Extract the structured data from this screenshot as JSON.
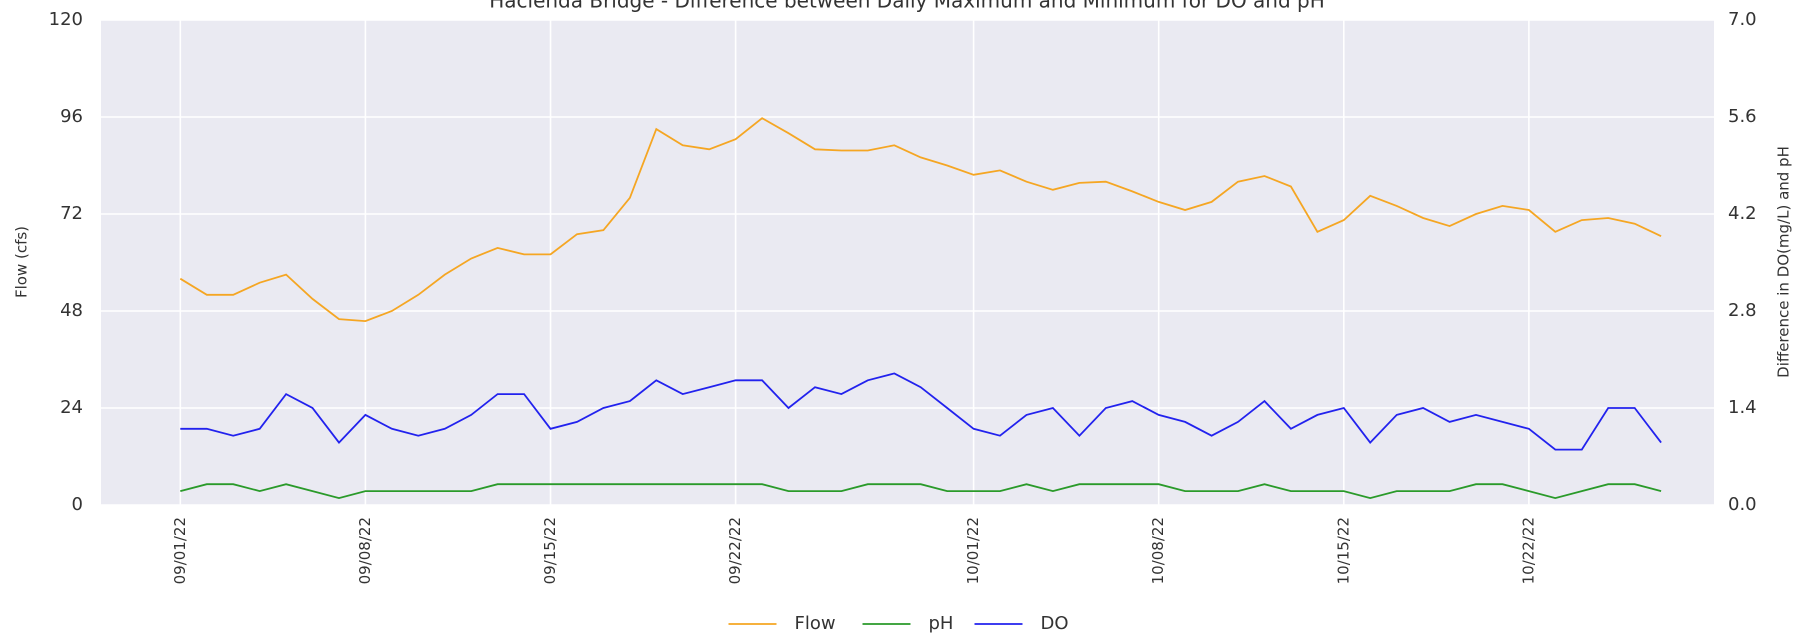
{
  "chart_data": {
    "type": "line",
    "title": "Hacienda Bridge - Difference between Daily Maximum and Minimum for DO and pH",
    "ylabel": "Flow (cfs)",
    "y2label": "Difference in DO(mg/L) and pH",
    "x": [
      "2022-09-01",
      "2022-09-02",
      "2022-09-03",
      "2022-09-04",
      "2022-09-05",
      "2022-09-06",
      "2022-09-07",
      "2022-09-08",
      "2022-09-09",
      "2022-09-10",
      "2022-09-11",
      "2022-09-12",
      "2022-09-13",
      "2022-09-14",
      "2022-09-15",
      "2022-09-16",
      "2022-09-17",
      "2022-09-18",
      "2022-09-19",
      "2022-09-20",
      "2022-09-21",
      "2022-09-22",
      "2022-09-23",
      "2022-09-24",
      "2022-09-25",
      "2022-09-26",
      "2022-09-27",
      "2022-09-28",
      "2022-09-29",
      "2022-09-30",
      "2022-10-01",
      "2022-10-02",
      "2022-10-03",
      "2022-10-04",
      "2022-10-05",
      "2022-10-06",
      "2022-10-07",
      "2022-10-08",
      "2022-10-09",
      "2022-10-10",
      "2022-10-11",
      "2022-10-12",
      "2022-10-13",
      "2022-10-14",
      "2022-10-15",
      "2022-10-16",
      "2022-10-17",
      "2022-10-18",
      "2022-10-19",
      "2022-10-20",
      "2022-10-21",
      "2022-10-22",
      "2022-10-23",
      "2022-10-24",
      "2022-10-25",
      "2022-10-26",
      "2022-10-27"
    ],
    "series": [
      {
        "name": "Flow",
        "color": "#f5a623",
        "values": [
          56,
          52,
          52,
          55,
          57,
          51,
          46,
          45.5,
          48,
          52,
          57,
          61,
          63.6,
          62,
          62,
          67,
          68,
          76,
          93,
          89,
          88,
          90.5,
          95.7,
          92,
          88,
          87.7,
          87.7,
          89,
          86,
          84,
          81.7,
          82.8,
          80,
          78,
          79.7,
          80,
          77.6,
          75,
          73,
          75,
          80,
          81.4,
          78.8,
          67.6,
          70.5,
          76.5,
          74,
          71,
          69,
          72,
          74,
          73,
          67.6,
          70.5,
          71,
          69.6,
          66.5
        ]
      },
      {
        "name": "pH",
        "color": "#2a9a2a",
        "axis": "y2",
        "values": [
          0.2,
          0.3,
          0.3,
          0.2,
          0.3,
          0.2,
          0.1,
          0.2,
          0.2,
          0.2,
          0.2,
          0.2,
          0.3,
          0.3,
          0.3,
          0.3,
          0.3,
          0.3,
          0.3,
          0.3,
          0.3,
          0.3,
          0.3,
          0.2,
          0.2,
          0.2,
          0.3,
          0.3,
          0.3,
          0.2,
          0.2,
          0.2,
          0.3,
          0.2,
          0.3,
          0.3,
          0.3,
          0.3,
          0.2,
          0.2,
          0.2,
          0.3,
          0.2,
          0.2,
          0.2,
          0.1,
          0.2,
          0.2,
          0.2,
          0.3,
          0.3,
          0.2,
          0.1,
          0.2,
          0.3,
          0.3,
          0.2
        ]
      },
      {
        "name": "DO",
        "color": "#2222ee",
        "axis": "y2",
        "values": [
          1.1,
          1.1,
          1.0,
          1.1,
          1.6,
          1.4,
          0.9,
          1.3,
          1.1,
          1.0,
          1.1,
          1.3,
          1.6,
          1.6,
          1.1,
          1.2,
          1.4,
          1.5,
          1.8,
          1.6,
          1.7,
          1.8,
          1.8,
          1.4,
          1.7,
          1.6,
          1.8,
          1.9,
          1.7,
          1.4,
          1.1,
          1.0,
          1.3,
          1.4,
          1.0,
          1.4,
          1.5,
          1.3,
          1.2,
          1.0,
          1.2,
          1.5,
          1.1,
          1.3,
          1.4,
          0.9,
          1.3,
          1.4,
          1.2,
          1.3,
          1.2,
          1.1,
          0.8,
          0.8,
          1.4,
          1.4,
          0.9
        ]
      }
    ],
    "xlim": [
      "2022-08-29",
      "2022-10-29"
    ],
    "xticks": [
      {
        "value": "2022-09-01",
        "label": "09/01/22"
      },
      {
        "value": "2022-09-08",
        "label": "09/08/22"
      },
      {
        "value": "2022-09-15",
        "label": "09/15/22"
      },
      {
        "value": "2022-09-22",
        "label": "09/22/22"
      },
      {
        "value": "2022-10-01",
        "label": "10/01/22"
      },
      {
        "value": "2022-10-08",
        "label": "10/08/22"
      },
      {
        "value": "2022-10-15",
        "label": "10/15/22"
      },
      {
        "value": "2022-10-22",
        "label": "10/22/22"
      }
    ],
    "ylim": [
      0,
      120
    ],
    "yticks": [
      0,
      24,
      48,
      72,
      96,
      120
    ],
    "y2lim": [
      0,
      7
    ],
    "y2ticks": [
      {
        "value": 0,
        "label": "0.0"
      },
      1.4,
      2.8,
      4.2,
      5.6,
      {
        "value": 7,
        "label": "7.0"
      }
    ],
    "grid": true,
    "legend": "bottom"
  }
}
